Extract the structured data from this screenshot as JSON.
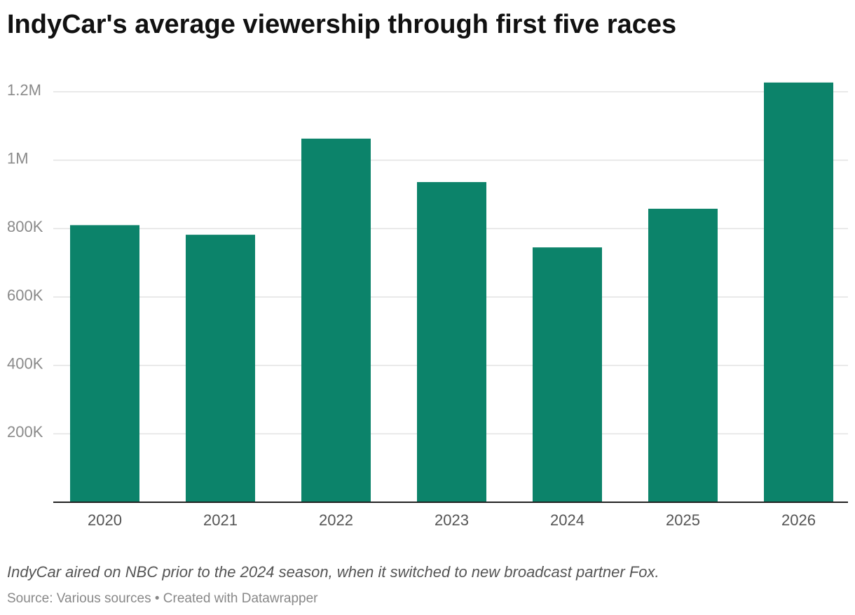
{
  "chart_data": {
    "type": "bar",
    "title": "IndyCar's average viewership through first five races",
    "categories": [
      "2020",
      "2021",
      "2022",
      "2023",
      "2024",
      "2025",
      "2026"
    ],
    "values": [
      810000,
      782000,
      1063000,
      936000,
      745000,
      858000,
      1227000
    ],
    "color": "#0c836a",
    "ylim": [
      0,
      1230000
    ],
    "yticks": [
      {
        "value": 200000,
        "label": "200K"
      },
      {
        "value": 400000,
        "label": "400K"
      },
      {
        "value": 600000,
        "label": "600K"
      },
      {
        "value": 800000,
        "label": "800K"
      },
      {
        "value": 1000000,
        "label": "1M"
      },
      {
        "value": 1200000,
        "label": "1.2M"
      }
    ],
    "grid": true,
    "note": "IndyCar aired on NBC prior to the 2024 season, when it switched to new broadcast partner Fox.",
    "source": "Source: Various sources • Created with Datawrapper"
  }
}
